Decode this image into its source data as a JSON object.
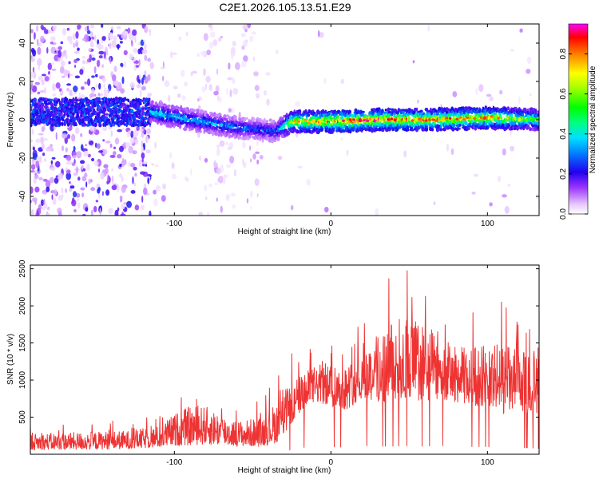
{
  "title": "C2E1.2026.105.13.51.E29",
  "chart_data": [
    {
      "type": "heatmap",
      "title": "C2E1.2026.105.13.51.E29",
      "xlabel": "Height of straight line (km)",
      "ylabel": "Frequency (Hz)",
      "xlim": [
        -192,
        133
      ],
      "ylim": [
        -50,
        50
      ],
      "xticks": [
        -100,
        0,
        100
      ],
      "yticks": [
        -40,
        -20,
        0,
        20,
        40
      ],
      "colorbar": {
        "label": "Normalized spectral amplitude",
        "range": [
          0,
          0.95
        ],
        "ticks": [
          0.0,
          0.2,
          0.4,
          0.6,
          0.8
        ],
        "tick_labels": [
          "0.0",
          "0.2",
          "0.4",
          "0.6",
          "0.8"
        ]
      },
      "ridge": {
        "description_points": [
          {
            "x": -115,
            "f": 4,
            "amp": 0.45
          },
          {
            "x": -90,
            "f": 0,
            "amp": 0.4
          },
          {
            "x": -60,
            "f": -4,
            "amp": 0.35
          },
          {
            "x": -35,
            "f": -6,
            "amp": 0.3
          },
          {
            "x": -25,
            "f": -1,
            "amp": 0.75
          },
          {
            "x": 0,
            "f": -1,
            "amp": 0.9
          },
          {
            "x": 30,
            "f": 0,
            "amp": 0.9
          },
          {
            "x": 60,
            "f": 0,
            "amp": 0.85
          },
          {
            "x": 100,
            "f": 1,
            "amp": 0.85
          },
          {
            "x": 133,
            "f": 0,
            "amp": 0.6
          }
        ]
      }
    },
    {
      "type": "line",
      "title": "",
      "xlabel": "Height of straight line (km)",
      "ylabel": "SNR (10 * v/v)",
      "xlim": [
        -192,
        133
      ],
      "ylim": [
        0,
        2550
      ],
      "xticks": [
        -100,
        0,
        100
      ],
      "yticks": [
        500,
        1000,
        1500,
        2000,
        2500
      ],
      "color": "#ee3333",
      "series": [
        {
          "name": "SNR",
          "envelope_x": [
            -192,
            -160,
            -130,
            -110,
            -100,
            -90,
            -80,
            -60,
            -45,
            -35,
            -25,
            -20,
            -10,
            0,
            10,
            20,
            30,
            40,
            50,
            60,
            70,
            80,
            90,
            100,
            110,
            120,
            133
          ],
          "envelope_low": [
            60,
            60,
            70,
            90,
            110,
            120,
            130,
            110,
            100,
            150,
            380,
            550,
            700,
            650,
            600,
            750,
            700,
            700,
            750,
            700,
            750,
            700,
            650,
            650,
            550,
            600,
            500
          ],
          "envelope_high": [
            280,
            300,
            320,
            380,
            550,
            650,
            650,
            450,
            500,
            700,
            1000,
            1050,
            1200,
            1250,
            1200,
            1400,
            1650,
            1800,
            1900,
            1750,
            1600,
            1450,
            1450,
            1500,
            1500,
            1400,
            1300
          ]
        }
      ]
    }
  ]
}
